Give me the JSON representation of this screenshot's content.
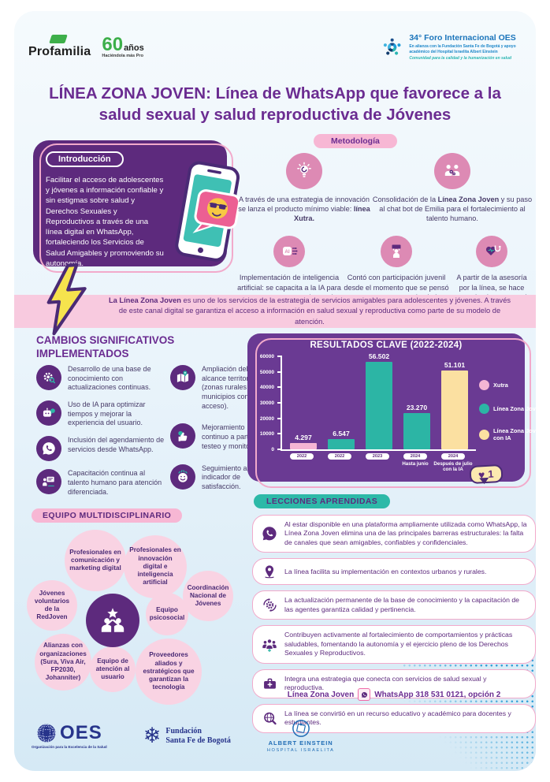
{
  "header": {
    "profamilia": "Profamilia",
    "anniversary_number": "60",
    "anniversary_word": "años",
    "anniversary_tagline": "Haciéndola más Pro",
    "foro": {
      "title": "34° Foro Internacional OES",
      "subtitle": "En alianza con la Fundación Santa Fe de Bogotá y apoyo académico del Hospital Israelita Albert Einstein",
      "tagline": "Comunidad para la calidad y la humanización en salud"
    }
  },
  "title": "LÍNEA ZONA JOVEN: Línea de WhatsApp que favorece a la salud sexual y salud reproductiva de Jóvenes",
  "intro": {
    "label": "Introducción",
    "text": "Facilitar el acceso de adolescentes y jóvenes a información confiable y sin estigmas sobre salud y Derechos Sexuales y Reproductivos a través de una línea digital en WhatsApp, fortaleciendo los Servicios de Salud Amigables y promoviendo su autonomía."
  },
  "metodologia": {
    "label": "Metodología",
    "items": [
      {
        "icon": "lightbulb-icon",
        "pre": "A través de una estrategia de innovación se lanza el producto mínimo viable: ",
        "bold": "línea Xutra.",
        "post": ""
      },
      {
        "icon": "team-gears-icon",
        "pre": "Consolidación de la ",
        "bold": "Línea Zona Joven",
        "post": " y su paso al chat bot de Emilia para el fortalecimiento al talento humano."
      },
      {
        "icon": "ai-icon",
        "pre": "Implementación de inteligencia artificial: se capacita a la IA para que tenga respuestas integrales y en un leguaje juvenil.",
        "bold": "",
        "post": ""
      },
      {
        "icon": "youth-participation-icon",
        "pre": "Contó con participación juvenil desde el momento que se pensó como un proyecto, desde la construcción, seguimiento y testeo.",
        "bold": "",
        "post": ""
      },
      {
        "icon": "health-access-icon",
        "pre": "A partir de la asesoría por la línea, se hace agendamiento para el acceso a servicios de salud.",
        "bold": "",
        "post": ""
      }
    ]
  },
  "banner": {
    "bold": "La Línea Zona Joven",
    "text": " es uno de los servicios de la estrategia de servicios amigables para adolescentes y jóvenes. A través de este canal digital se garantiza el acceso a información en salud sexual y reproductiva como parte de su modelo de atención."
  },
  "cambios": {
    "heading": "CAMBIOS SIGNIFICATIVOS IMPLEMENTADOS",
    "items": [
      {
        "icon": "knowledge-gear-icon",
        "text": "Desarrollo de una base de conocimiento con actualizaciones continuas."
      },
      {
        "icon": "ai-chat-icon",
        "text": "Uso de IA para optimizar tiempos y mejorar la experiencia del usuario."
      },
      {
        "icon": "whatsapp-icon",
        "text": "Inclusión del agendamiento de servicios desde WhatsApp."
      },
      {
        "icon": "training-icon",
        "text": "Capacitación continua al talento humano para atención diferenciada."
      },
      {
        "icon": "territory-map-icon",
        "text": "Ampliación del alcance territorial (zonas rurales y municipios con difícil acceso)."
      },
      {
        "icon": "improvement-icon",
        "text": "Mejoramiento continuo a partir del testeo y monitoreo."
      },
      {
        "icon": "satisfaction-icon",
        "text": "Seguimiento al indicador de satisfacción."
      }
    ]
  },
  "chart_data": {
    "type": "bar",
    "title": "RESULTADOS CLAVE (2022-2024)",
    "categories": [
      "2022",
      "2022",
      "2023",
      "2024",
      "2024"
    ],
    "sublabels": [
      "",
      "",
      "",
      "Hasta junio",
      "Después de julio con la IA"
    ],
    "values": [
      4297,
      6547,
      56502,
      23270,
      51101
    ],
    "display_values": [
      "4.297",
      "6.547",
      "56.502",
      "23.270",
      "51.101"
    ],
    "bar_colors": [
      "#f5b5d4",
      "#2cb5a5",
      "#2cb5a5",
      "#2cb5a5",
      "#fbe0a1"
    ],
    "ylim": [
      0,
      60000
    ],
    "yticks": [
      0,
      10000,
      20000,
      30000,
      40000,
      50000,
      60000
    ],
    "grid": false,
    "legend_position": "right",
    "legend": [
      {
        "label": "Xutra",
        "color": "#f5b5d4"
      },
      {
        "label": "Línea Zona Joven",
        "color": "#2cb5a5"
      },
      {
        "label": "Línea Zona Joven con IA",
        "color": "#fbe0a1"
      }
    ]
  },
  "like_badge": {
    "heart": "♥",
    "count": "1"
  },
  "lecciones": {
    "heading": "LECCIONES APRENDIDAS",
    "items": [
      {
        "icon": "whatsapp-icon",
        "text": "Al estar disponible en una plataforma ampliamente utilizada como WhatsApp, la Línea Zona Joven elimina una de las principales barreras estructurales: la falta de canales que sean amigables, confiables y confidenciales."
      },
      {
        "icon": "location-pin-icon",
        "text": "La línea facilita su implementación en contextos urbanos y rurales."
      },
      {
        "icon": "update-gear-icon",
        "text": "La actualización permanente de la base de conocimiento y la capacitación de las agentes garantiza calidad y pertinencia."
      },
      {
        "icon": "community-icon",
        "text": "Contribuyen activamente al fortalecimiento de comportamientos y prácticas saludables, fomentando la autonomía y el ejercicio pleno de los Derechos Sexuales y Reproductivos."
      },
      {
        "icon": "medical-kit-icon",
        "text": "Integra una estrategia que conecta con servicios de salud sexual y reproductiva."
      },
      {
        "icon": "globe-search-icon",
        "text": "La línea se convirtió en un recurso educativo y académico para docentes y estudiantes."
      }
    ]
  },
  "contact": {
    "bold": "Línea Zona Joven",
    "text": "WhatsApp 318 531 0121, opción 2"
  },
  "equipo": {
    "heading": "EQUIPO MULTIDISCIPLINARIO",
    "bubbles": [
      "Profesionales en comunicación y marketing digital",
      "Profesionales en innovación digital e inteligencia artificial",
      "Coordinación Nacional de Jóvenes",
      "Jóvenes voluntarios de la RedJoven",
      "Equipo psicosocial",
      "Alianzas con organizaciones (Sura, Viva Air, FP2030, Johanniter)",
      "Equipo de atención al usuario",
      "Proveedores aliados y estratégicos que garantizan la tecnología"
    ]
  },
  "footer": {
    "oes": {
      "name": "OES",
      "tagline": "Organización para la Excelencia de la Salud"
    },
    "santafe": {
      "line1": "Fundación",
      "line2": "Santa Fe de Bogotá"
    },
    "einstein": {
      "line1": "ALBERT EINSTEIN",
      "line2": "HOSPITAL ISRAELITA"
    }
  },
  "colors": {
    "purple": "#5d2a7d",
    "pink": "#f7b7d4",
    "teal": "#2cb5a5",
    "yellow": "#fbe0a1",
    "chart_bg": "#6a3a93"
  }
}
